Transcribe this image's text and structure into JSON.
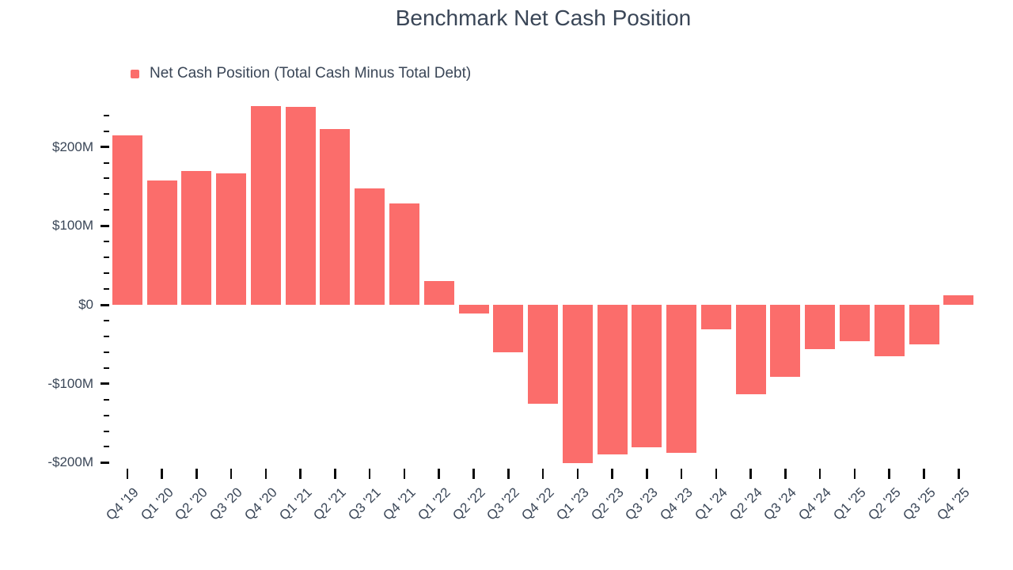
{
  "chart": {
    "title": "Benchmark Net Cash Position",
    "legend_items": [
      {
        "label": "Net Cash Position (Total Cash Minus Total Debt)",
        "color": "#fb6d6b"
      }
    ]
  },
  "colors": {
    "bar": "#fb6d6b",
    "text": "#3a4657",
    "tick": "#0a0a0a",
    "background": "#ffffff"
  },
  "chart_data": {
    "type": "bar",
    "title": "Benchmark Net Cash Position",
    "xlabel": "",
    "ylabel": "",
    "values_unit": "USD millions",
    "grid": false,
    "legend_position": "top-left",
    "ylim": [
      -220,
      256
    ],
    "categories": [
      "Q4 '19",
      "Q1 '20",
      "Q2 '20",
      "Q3 '20",
      "Q4 '20",
      "Q1 '21",
      "Q2 '21",
      "Q3 '21",
      "Q4 '21",
      "Q1 '22",
      "Q2 '22",
      "Q3 '22",
      "Q4 '22",
      "Q1 '23",
      "Q2 '23",
      "Q3 '23",
      "Q4 '23",
      "Q1 '24",
      "Q2 '24",
      "Q3 '24",
      "Q4 '24",
      "Q1 '25",
      "Q2 '25",
      "Q3 '25",
      "Q4 '25"
    ],
    "series": [
      {
        "name": "Net Cash Position (Total Cash Minus Total Debt)",
        "color": "#fb6d6b",
        "values": [
          215,
          157,
          170,
          166,
          252,
          251,
          223,
          147,
          128,
          30,
          -11,
          -60,
          -125,
          -201,
          -190,
          -181,
          -188,
          -31,
          -113,
          -91,
          -56,
          -46,
          -65,
          -50,
          12
        ]
      }
    ],
    "y_axis": {
      "major_ticks": [
        {
          "value": 200,
          "label": "$200M"
        },
        {
          "value": 100,
          "label": "$100M"
        },
        {
          "value": 0,
          "label": "$0"
        },
        {
          "value": -100,
          "label": "-$100M"
        },
        {
          "value": -200,
          "label": "-$200M"
        }
      ],
      "minor_tick_step": 20,
      "minor_tick_range": [
        -200,
        240
      ]
    }
  }
}
